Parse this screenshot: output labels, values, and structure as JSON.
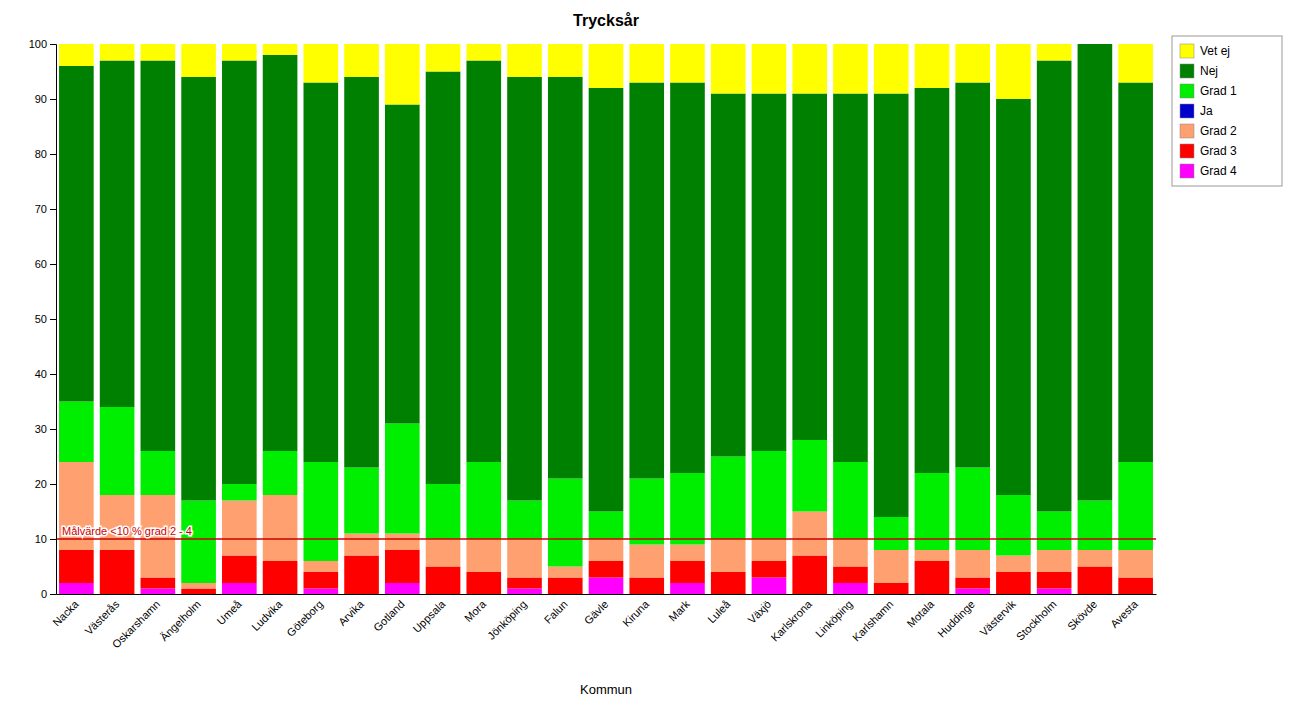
{
  "chart_data": {
    "type": "bar",
    "stacked": true,
    "title": "Trycksår",
    "xlabel": "Kommun",
    "categories": [
      "Nacka",
      "Västerås",
      "Oskarshamn",
      "Ängelholm",
      "Umeå",
      "Ludvika",
      "Göteborg",
      "Arvika",
      "Gotland",
      "Uppsala",
      "Mora",
      "Jönköping",
      "Falun",
      "Gävle",
      "Kiruna",
      "Mark",
      "Luleå",
      "Växjö",
      "Karlskrona",
      "Linköping",
      "Karlshamn",
      "Motala",
      "Huddinge",
      "Västervik",
      "Stockholm",
      "Skövde",
      "Avesta"
    ],
    "series": [
      {
        "name": "Grad 4",
        "color": "#FF00FF",
        "values": [
          2,
          0,
          1,
          0,
          2,
          0,
          1,
          0,
          2,
          0,
          0,
          1,
          0,
          3,
          0,
          2,
          0,
          3,
          0,
          2,
          0,
          0,
          1,
          0,
          1,
          0,
          0
        ]
      },
      {
        "name": "Grad 3",
        "color": "#FF0000",
        "values": [
          6,
          8,
          2,
          1,
          5,
          6,
          3,
          7,
          6,
          5,
          4,
          2,
          3,
          3,
          3,
          4,
          4,
          3,
          7,
          3,
          2,
          6,
          2,
          4,
          3,
          5,
          3
        ]
      },
      {
        "name": "Grad 2",
        "color": "#FFA070",
        "values": [
          16,
          10,
          15,
          1,
          10,
          12,
          2,
          4,
          3,
          5,
          6,
          7,
          2,
          4,
          6,
          3,
          6,
          4,
          8,
          5,
          6,
          2,
          5,
          3,
          4,
          3,
          5
        ]
      },
      {
        "name": "Ja",
        "color": "#0000CD",
        "values": [
          0,
          0,
          0,
          0,
          0,
          0,
          0,
          0,
          0,
          0,
          0,
          0,
          0,
          0,
          0,
          0,
          0,
          0,
          0,
          0,
          0,
          0,
          0,
          0,
          0,
          0,
          0
        ]
      },
      {
        "name": "Grad 1",
        "color": "#00EE00",
        "values": [
          11,
          16,
          8,
          15,
          3,
          8,
          18,
          12,
          20,
          10,
          14,
          7,
          16,
          5,
          12,
          13,
          15,
          16,
          13,
          14,
          6,
          14,
          15,
          11,
          7,
          9,
          16
        ]
      },
      {
        "name": "Nej",
        "color": "#008000",
        "values": [
          61,
          63,
          71,
          77,
          77,
          72,
          69,
          71,
          58,
          75,
          73,
          77,
          73,
          77,
          72,
          71,
          66,
          65,
          63,
          67,
          77,
          70,
          70,
          72,
          82,
          83,
          69
        ]
      },
      {
        "name": "Vet ej",
        "color": "#FFFF00",
        "values": [
          4,
          3,
          3,
          6,
          3,
          2,
          7,
          6,
          11,
          5,
          3,
          6,
          6,
          8,
          7,
          7,
          9,
          9,
          9,
          9,
          9,
          8,
          7,
          10,
          3,
          0,
          7
        ]
      }
    ],
    "annotations": [
      {
        "text": "Målvärde <10 % grad 2 - 4",
        "y": 10,
        "color": "#CC0000"
      }
    ],
    "ylim": [
      0,
      100
    ],
    "yticks": [
      0,
      10,
      20,
      30,
      40,
      50,
      60,
      70,
      80,
      90,
      100
    ],
    "grid": false,
    "legend": "right"
  }
}
